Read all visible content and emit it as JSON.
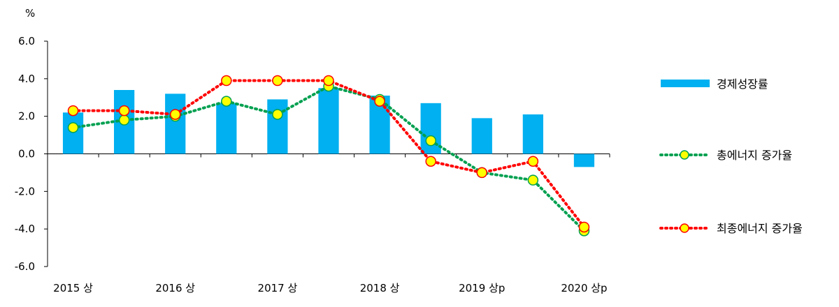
{
  "chart_data": {
    "type": "bar",
    "unit_label": "%",
    "categories": [
      "2015 상",
      "",
      "2016 상",
      "",
      "2017 상",
      "",
      "2018 상",
      "",
      "2019 상p",
      "",
      "2020 상p"
    ],
    "y_ticks": [
      "6.0",
      "4.0",
      "2.0",
      "0.0",
      "-2.0",
      "-4.0",
      "-6.0"
    ],
    "ylim": [
      -6,
      6
    ],
    "series": [
      {
        "name": "경제성장률",
        "kind": "bar",
        "color": "#00B0F0",
        "values": [
          2.2,
          3.4,
          3.2,
          2.7,
          2.9,
          3.5,
          3.1,
          2.7,
          1.9,
          2.1,
          -0.7
        ]
      },
      {
        "name": "총에너지 증가율",
        "kind": "line",
        "color": "#00A050",
        "marker_fill": "#FFFF00",
        "values": [
          1.4,
          1.8,
          2.0,
          2.8,
          2.1,
          3.6,
          2.9,
          0.7,
          -1.0,
          -1.4,
          -4.1
        ]
      },
      {
        "name": "최종에너지 증가율",
        "kind": "line",
        "color": "#FF0000",
        "marker_fill": "#FFFF00",
        "values": [
          2.3,
          2.3,
          2.1,
          3.9,
          3.9,
          3.9,
          2.8,
          -0.4,
          -1.0,
          -0.4,
          -3.9
        ]
      }
    ],
    "legend_position": "right"
  }
}
